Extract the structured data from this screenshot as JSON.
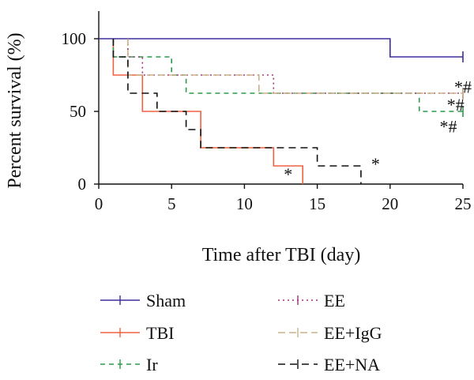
{
  "chart_data": {
    "type": "line",
    "step": true,
    "xlabel": "Time after TBI (day)",
    "ylabel": "Percent survival (%)",
    "xlim": [
      0,
      25
    ],
    "ylim": [
      0,
      100
    ],
    "xticks": [
      0,
      5,
      10,
      15,
      20,
      25
    ],
    "yticks": [
      0,
      50,
      100
    ],
    "grid": false,
    "legend_position": "bottom",
    "series": [
      {
        "name": "Sham",
        "color": "#3d2f9a",
        "dash": "solid",
        "points": [
          [
            0,
            100
          ],
          [
            20,
            100
          ],
          [
            20,
            87.5
          ],
          [
            25,
            87.5
          ]
        ],
        "censors": [
          [
            25,
            87.5
          ]
        ]
      },
      {
        "name": "TBI",
        "color": "#f06040",
        "dash": "solid",
        "points": [
          [
            1,
            100
          ],
          [
            1,
            75
          ],
          [
            3,
            75
          ],
          [
            3,
            50
          ],
          [
            7,
            50
          ],
          [
            7,
            25
          ],
          [
            12,
            25
          ],
          [
            12,
            12.5
          ],
          [
            14,
            12.5
          ],
          [
            14,
            0
          ]
        ],
        "censors": []
      },
      {
        "name": "Ir",
        "color": "#2a9a48",
        "dash": "6,5",
        "points": [
          [
            1,
            100
          ],
          [
            1,
            87.5
          ],
          [
            5,
            87.5
          ],
          [
            5,
            75
          ],
          [
            6,
            75
          ],
          [
            6,
            62.5
          ],
          [
            22,
            62.5
          ],
          [
            22,
            50
          ],
          [
            25,
            50
          ]
        ],
        "censors": [
          [
            25,
            50
          ]
        ]
      },
      {
        "name": "EE",
        "color": "#a0337a",
        "dash": "2,4",
        "points": [
          [
            2,
            100
          ],
          [
            2,
            87.5
          ],
          [
            3,
            87.5
          ],
          [
            3,
            75
          ],
          [
            12,
            75
          ],
          [
            12,
            62.5
          ],
          [
            25,
            62.5
          ]
        ],
        "censors": [
          [
            25,
            62.5
          ]
        ]
      },
      {
        "name": "EE+IgG",
        "color": "#c8b48a",
        "dash": "9,5",
        "points": [
          [
            2,
            100
          ],
          [
            2,
            75
          ],
          [
            11,
            75
          ],
          [
            11,
            62.5
          ],
          [
            25,
            62.5
          ]
        ],
        "censors": [
          [
            25,
            62.5
          ]
        ]
      },
      {
        "name": "EE+NA",
        "color": "#111111",
        "dash": "9,6",
        "points": [
          [
            1,
            100
          ],
          [
            1,
            87.5
          ],
          [
            2,
            87.5
          ],
          [
            2,
            62.5
          ],
          [
            4,
            62.5
          ],
          [
            4,
            50
          ],
          [
            6,
            50
          ],
          [
            6,
            37.5
          ],
          [
            7,
            37.5
          ],
          [
            7,
            25
          ],
          [
            15,
            25
          ],
          [
            15,
            12.5
          ],
          [
            18,
            12.5
          ],
          [
            18,
            0
          ]
        ],
        "censors": []
      }
    ],
    "annotations": [
      {
        "text": "*",
        "x": 13,
        "y": 7
      },
      {
        "text": "*",
        "x": 19,
        "y": 14
      },
      {
        "text": "*#",
        "x": 25,
        "y": 67
      },
      {
        "text": "*#",
        "x": 24.5,
        "y": 55
      },
      {
        "text": "*#",
        "x": 24,
        "y": 40
      }
    ]
  }
}
